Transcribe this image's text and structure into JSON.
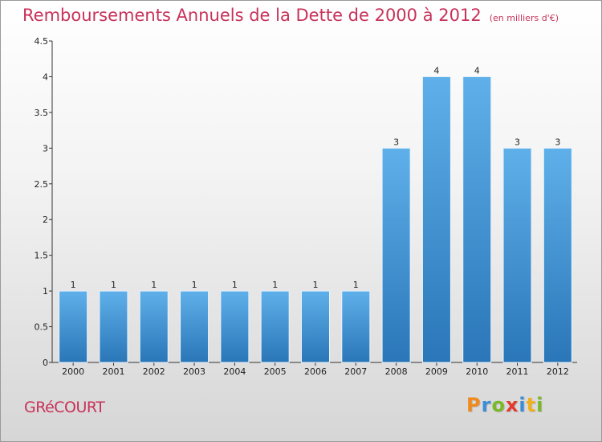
{
  "title": "Remboursements Annuels de la Dette de 2000 à 2012",
  "unit_note": "(en milliers d'€)",
  "commune": "GRéCOURT",
  "logo": {
    "letters": [
      "P",
      "r",
      "o",
      "x",
      "i",
      "t",
      "i"
    ],
    "colors": [
      "#f08a1d",
      "#3b8ed6",
      "#7ab829",
      "#e23b2e",
      "#3b8ed6",
      "#f2b01e",
      "#7ab829"
    ]
  },
  "colors": {
    "bar_top": "#5fb0ea",
    "bar_bottom": "#2a76b8",
    "title": "#c8325a"
  },
  "chart_data": {
    "type": "bar",
    "title": "Remboursements Annuels de la Dette de 2000 à 2012",
    "xlabel": "",
    "ylabel": "",
    "categories": [
      "2000",
      "2001",
      "2002",
      "2003",
      "2004",
      "2005",
      "2006",
      "2007",
      "2008",
      "2009",
      "2010",
      "2011",
      "2012"
    ],
    "values": [
      1,
      1,
      1,
      1,
      1,
      1,
      1,
      1,
      3,
      4,
      4,
      3,
      3
    ],
    "value_labels": [
      "1",
      "1",
      "1",
      "1",
      "1",
      "1",
      "1",
      "1",
      "3",
      "4",
      "4",
      "3",
      "3"
    ],
    "ylim": [
      0,
      4.5
    ],
    "yticks": [
      0,
      0.5,
      1,
      1.5,
      2,
      2.5,
      3,
      3.5,
      4,
      4.5
    ],
    "ytick_labels": [
      "0",
      "0.5",
      "1",
      "1.5",
      "2",
      "2.5",
      "3",
      "3.5",
      "4",
      "4.5"
    ],
    "grid": false
  }
}
